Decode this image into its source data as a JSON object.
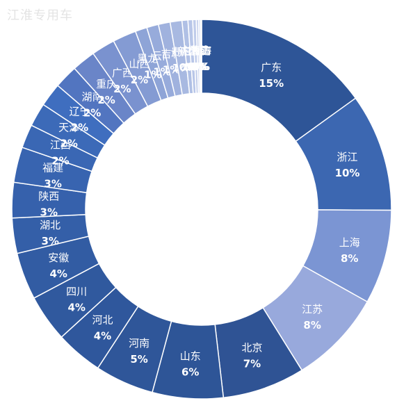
{
  "watermark": "江淮专用车",
  "chart_data": {
    "type": "donut",
    "unit": "%",
    "slices": [
      {
        "label": "广东",
        "value": 15,
        "value_label": "15%",
        "color": "#2e5597"
      },
      {
        "label": "浙江",
        "value": 10,
        "value_label": "10%",
        "color": "#3c67b1"
      },
      {
        "label": "上海",
        "value": 8,
        "value_label": "8%",
        "color": "#7b95d3"
      },
      {
        "label": "江苏",
        "value": 8,
        "value_label": "8%",
        "color": "#98a9dc"
      },
      {
        "label": "北京",
        "value": 7,
        "value_label": "7%",
        "color": "#2f5394"
      },
      {
        "label": "山东",
        "value": 6,
        "value_label": "6%",
        "color": "#2e5597"
      },
      {
        "label": "河南",
        "value": 5,
        "value_label": "5%",
        "color": "#2f5699"
      },
      {
        "label": "河北",
        "value": 4,
        "value_label": "4%",
        "color": "#2f579c"
      },
      {
        "label": "四川",
        "value": 4,
        "value_label": "4%",
        "color": "#30599e"
      },
      {
        "label": "安徽",
        "value": 4,
        "value_label": "4%",
        "color": "#325ca3"
      },
      {
        "label": "湖北",
        "value": 3,
        "value_label": "3%",
        "color": "#345fa8"
      },
      {
        "label": "陕西",
        "value": 3,
        "value_label": "3%",
        "color": "#3661ac"
      },
      {
        "label": "福建",
        "value": 3,
        "value_label": "3%",
        "color": "#3864b0"
      },
      {
        "label": "江西",
        "value": 2,
        "value_label": "2%",
        "color": "#3a67b4"
      },
      {
        "label": "天津",
        "value": 2,
        "value_label": "2%",
        "color": "#3c6ab8"
      },
      {
        "label": "辽宁",
        "value": 2,
        "value_label": "2%",
        "color": "#3f6ebf"
      },
      {
        "label": "湖南",
        "value": 2,
        "value_label": "2%",
        "color": "#5275c0"
      },
      {
        "label": "重庆",
        "value": 2,
        "value_label": "2%",
        "color": "#6a85c8"
      },
      {
        "label": "广西",
        "value": 2,
        "value_label": "2%",
        "color": "#7a92cf"
      },
      {
        "label": "山西",
        "value": 2,
        "value_label": "2%",
        "color": "#849bd3"
      },
      {
        "label": "黑龙江",
        "value": 1,
        "value_label": "1%",
        "color": "#8ea4d7"
      },
      {
        "label": "云南",
        "value": 1,
        "value_label": "1%",
        "color": "#97abdb"
      },
      {
        "label": "吉林",
        "value": 1,
        "value_label": "1%",
        "color": "#a0b2de"
      },
      {
        "label": "贵州",
        "value": 1,
        "value_label": "1%",
        "color": "#a8b9e1"
      },
      {
        "label": "新疆",
        "value": 0.5,
        "value_label": "0%",
        "color": "#b0c0e5"
      },
      {
        "label": "甘肃",
        "value": 0.4,
        "value_label": "0%",
        "color": "#b8c6e8"
      },
      {
        "label": "内蒙古",
        "value": 0.3,
        "value_label": "0%",
        "color": "#c0ccea"
      },
      {
        "label": "宁夏",
        "value": 0.2,
        "value_label": "0%",
        "color": "#c8d2ed"
      },
      {
        "label": "海南",
        "value": 0.15,
        "value_label": "0%",
        "color": "#d0d9f0"
      },
      {
        "label": "青海",
        "value": 0.1,
        "value_label": "0%",
        "color": "#d8dff3"
      }
    ]
  }
}
